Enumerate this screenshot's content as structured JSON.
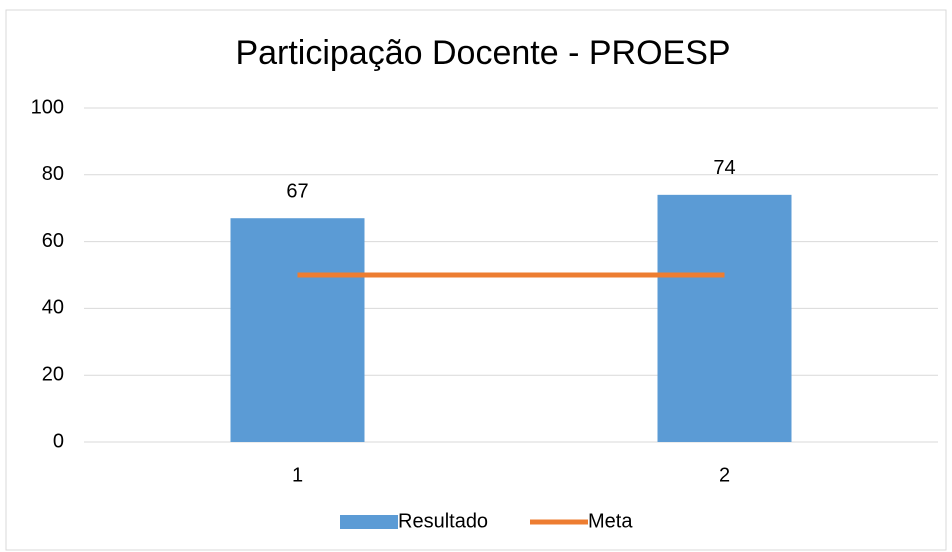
{
  "chart_data": {
    "type": "bar-line",
    "title": "Participação Docente - PROESP",
    "categories": [
      "1",
      "2"
    ],
    "series": [
      {
        "name": "Resultado",
        "type": "bar",
        "color": "#5b9bd5",
        "values": [
          67,
          74
        ]
      },
      {
        "name": "Meta",
        "type": "line",
        "color": "#ed7d31",
        "values": [
          50,
          50
        ]
      }
    ],
    "ylim": [
      0,
      100
    ],
    "yticks": [
      0,
      20,
      40,
      60,
      80,
      100
    ],
    "grid": true,
    "legend": "bottom"
  }
}
